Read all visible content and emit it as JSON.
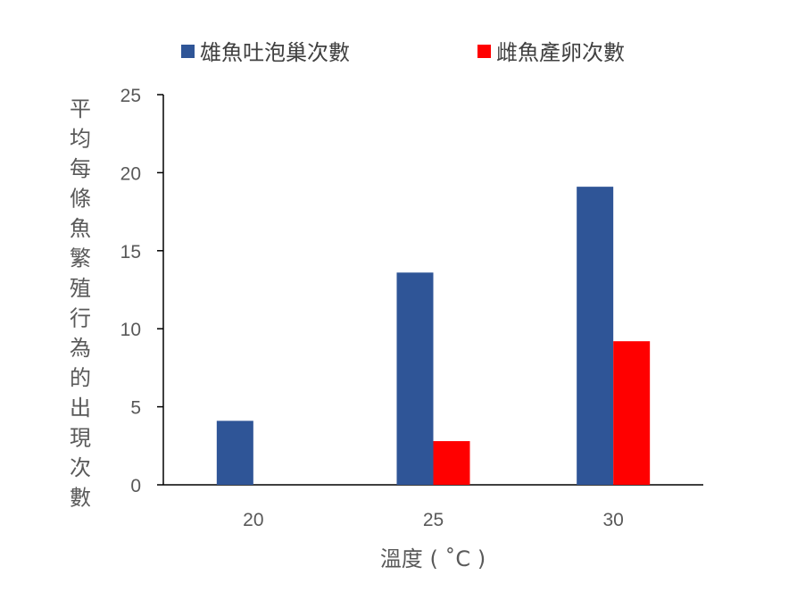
{
  "chart_data": {
    "type": "bar",
    "title": "",
    "xlabel": "溫度 ( ˚C )",
    "ylabel": "平均每條魚繁殖行為的出現次數",
    "categories": [
      "20",
      "25",
      "30"
    ],
    "series": [
      {
        "name": "雄魚吐泡巢次數",
        "color": "#2F5597",
        "values": [
          4.1,
          13.6,
          19.1
        ]
      },
      {
        "name": "雌魚產卵次數",
        "color": "#FF0000",
        "values": [
          0,
          2.8,
          9.2
        ]
      }
    ],
    "ylim": [
      0,
      25
    ],
    "yticks": [
      0,
      5,
      10,
      15,
      20,
      25
    ],
    "grid": false,
    "legend_position": "top"
  }
}
